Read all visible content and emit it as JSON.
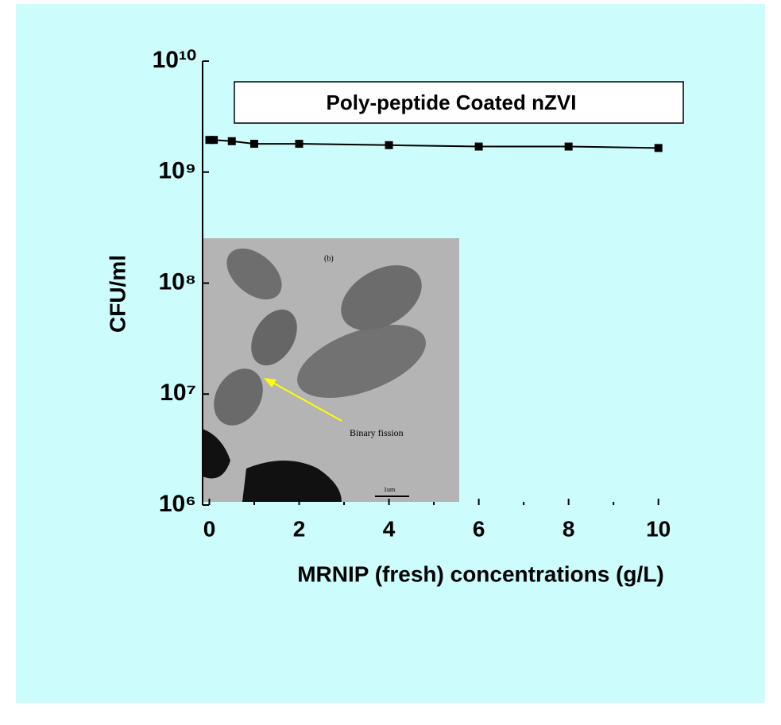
{
  "chart_data": {
    "type": "line",
    "title": "Poly-peptide Coated  nZVI",
    "x_label": "MRNIP (fresh) concentrations (g/L)",
    "y_label": "CFU/ml",
    "x": [
      0,
      0.1,
      0.5,
      1,
      2,
      4,
      6,
      8,
      10
    ],
    "series": [
      {
        "name": "Poly-peptide Coated  nZVI",
        "color": "#000000",
        "values": [
          1950000000,
          1950000000,
          1900000000,
          1800000000,
          1800000000,
          1750000000,
          1700000000,
          1700000000,
          1650000000
        ]
      }
    ],
    "xlim": [
      -0.15,
      10.2
    ],
    "xticks": [
      0,
      2,
      4,
      6,
      8,
      10
    ],
    "xminor": [
      1,
      3,
      5,
      7,
      9
    ],
    "ylim": [
      1000000,
      10000000000
    ],
    "ylog": true,
    "yticks": [
      {
        "value": 1000000,
        "label": "10⁶"
      },
      {
        "value": 10000000,
        "label": "10⁷"
      },
      {
        "value": 100000000,
        "label": "10⁸"
      },
      {
        "value": 1000000000,
        "label": "10⁹"
      },
      {
        "value": 10000000000,
        "label": "10¹⁰"
      }
    ],
    "inset_texts": {
      "panel": "(b)",
      "annotation": "Binary fission",
      "scale": "1um"
    }
  }
}
